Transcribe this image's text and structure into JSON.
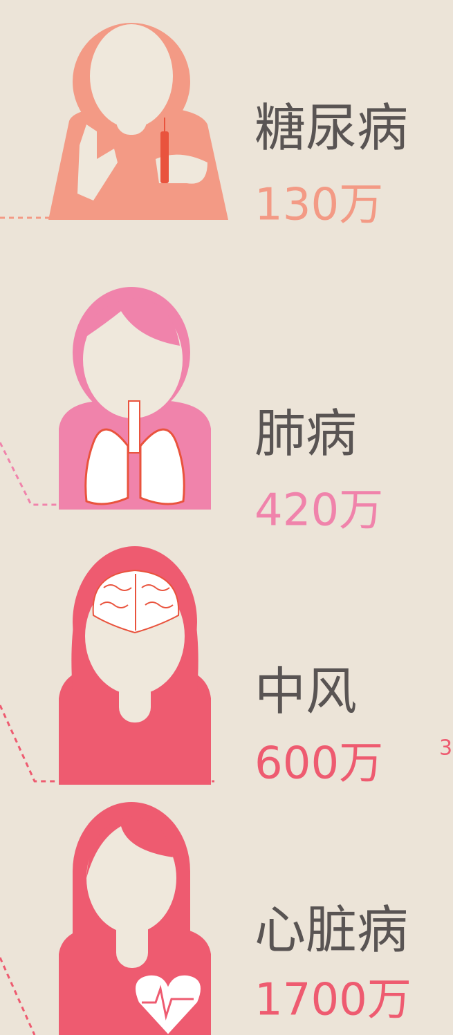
{
  "items": [
    {
      "name": "糖尿病",
      "value": "130万",
      "color": "#f39a85"
    },
    {
      "name": "肺病",
      "value": "420万",
      "color": "#f083ab"
    },
    {
      "name": "中风",
      "value": "600万",
      "note": "3",
      "color": "#ee5b70"
    },
    {
      "name": "心脏病",
      "value": "1700万",
      "color": "#ee5b70"
    }
  ]
}
